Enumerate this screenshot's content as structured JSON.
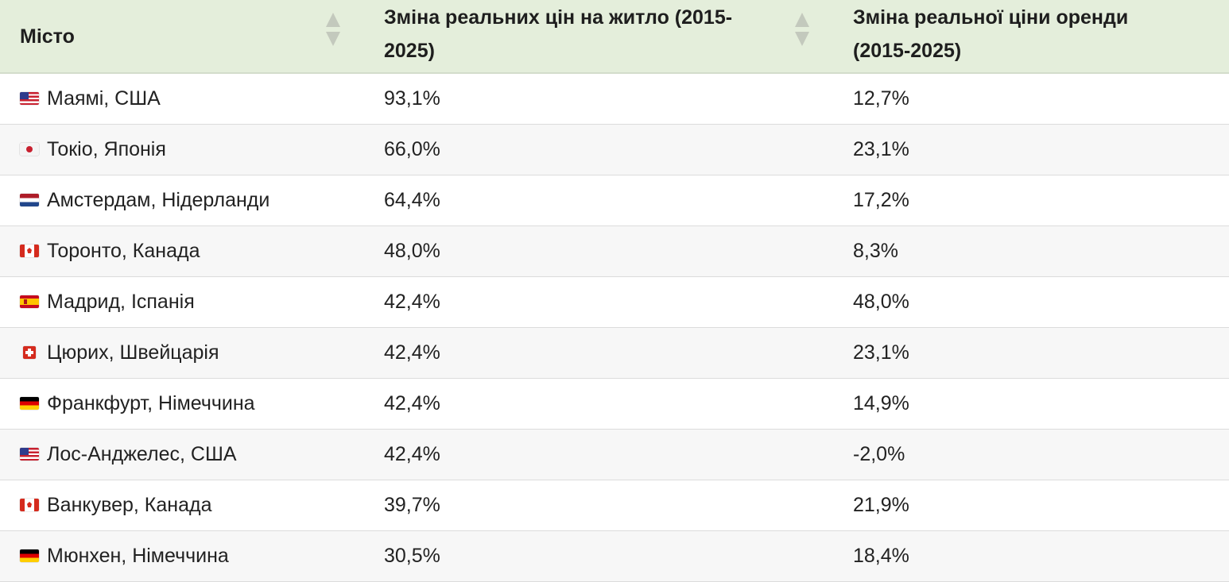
{
  "table": {
    "headers": [
      {
        "label": "Місто"
      },
      {
        "label": "Зміна реальних цін на житло (2015-2025)"
      },
      {
        "label": "Зміна реальної ціни оренди (2015-2025)"
      }
    ],
    "rows": [
      {
        "flag": "us-flag-icon",
        "city": "Маямі, США",
        "housing_change": "93,1%",
        "rent_change": "12,7%"
      },
      {
        "flag": "jp-flag-icon",
        "city": "Токіо, Японія",
        "housing_change": "66,0%",
        "rent_change": "23,1%"
      },
      {
        "flag": "nl-flag-icon",
        "city": "Амстердам, Нідерланди",
        "housing_change": "64,4%",
        "rent_change": "17,2%"
      },
      {
        "flag": "ca-flag-icon",
        "city": "Торонто, Канада",
        "housing_change": "48,0%",
        "rent_change": "8,3%"
      },
      {
        "flag": "es-flag-icon",
        "city": "Мадрид, Іспанія",
        "housing_change": "42,4%",
        "rent_change": "48,0%"
      },
      {
        "flag": "ch-flag-icon",
        "city": "Цюрих, Швейцарія",
        "housing_change": "42,4%",
        "rent_change": "23,1%"
      },
      {
        "flag": "de-flag-icon",
        "city": "Франкфурт, Німеччина",
        "housing_change": "42,4%",
        "rent_change": "14,9%"
      },
      {
        "flag": "us-flag-icon",
        "city": "Лос-Анджелес, США",
        "housing_change": "42,4%",
        "rent_change": "-2,0%"
      },
      {
        "flag": "ca-flag-icon",
        "city": "Ванкувер, Канада",
        "housing_change": "39,7%",
        "rent_change": "21,9%"
      },
      {
        "flag": "de-flag-icon",
        "city": "Мюнхен, Німеччина",
        "housing_change": "30,5%",
        "rent_change": "18,4%"
      }
    ]
  },
  "colors": {
    "header_bg": "#e4eedb",
    "row_alt_bg": "#f7f7f7",
    "sort_arrow": "#c3c9bd"
  }
}
